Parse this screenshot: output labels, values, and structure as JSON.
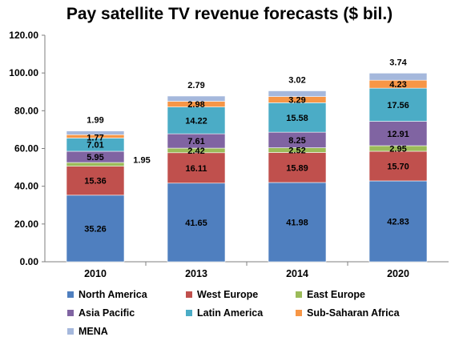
{
  "chart_data": {
    "type": "bar",
    "stacked": true,
    "title": "Pay satellite TV revenue forecasts ($ bil.)",
    "categories": [
      "2010",
      "2013",
      "2014",
      "2020"
    ],
    "ylim": [
      0,
      120
    ],
    "yticks": [
      "0.00",
      "20.00",
      "40.00",
      "60.00",
      "80.00",
      "100.00",
      "120.00"
    ],
    "grid": false,
    "legend_position": "bottom",
    "series": [
      {
        "name": "North America",
        "color": "#4f7fbf",
        "values": [
          35.26,
          41.65,
          41.98,
          42.83
        ],
        "labels": [
          "35.26",
          "41.65",
          "41.98",
          "42.83"
        ]
      },
      {
        "name": "West Europe",
        "color": "#c0504d",
        "values": [
          15.36,
          16.11,
          15.89,
          15.7
        ],
        "labels": [
          "15.36",
          "16.11",
          "15.89",
          "15.70"
        ]
      },
      {
        "name": "East Europe",
        "color": "#9bbb59",
        "values": [
          1.95,
          2.42,
          2.52,
          2.95
        ],
        "labels": [
          "1.95",
          "2.42",
          "2.52",
          "2.95"
        ]
      },
      {
        "name": "Asia Pacific",
        "color": "#8064a2",
        "values": [
          5.95,
          7.61,
          8.25,
          12.91
        ],
        "labels": [
          "5.95",
          "7.61",
          "8.25",
          "12.91"
        ]
      },
      {
        "name": "Latin America",
        "color": "#4bacc6",
        "values": [
          7.01,
          14.22,
          15.58,
          17.56
        ],
        "labels": [
          "7.01",
          "14.22",
          "15.58",
          "17.56"
        ]
      },
      {
        "name": "Sub-Saharan Africa",
        "color": "#f79646",
        "values": [
          1.77,
          2.98,
          3.29,
          4.23
        ],
        "labels": [
          "1.77",
          "2.98",
          "3.29",
          "4.23"
        ]
      },
      {
        "name": "MENA",
        "color": "#a5b8dc",
        "values": [
          1.99,
          2.79,
          3.02,
          3.74
        ],
        "labels": [
          "1.99",
          "2.79",
          "3.02",
          "3.74"
        ]
      }
    ]
  }
}
